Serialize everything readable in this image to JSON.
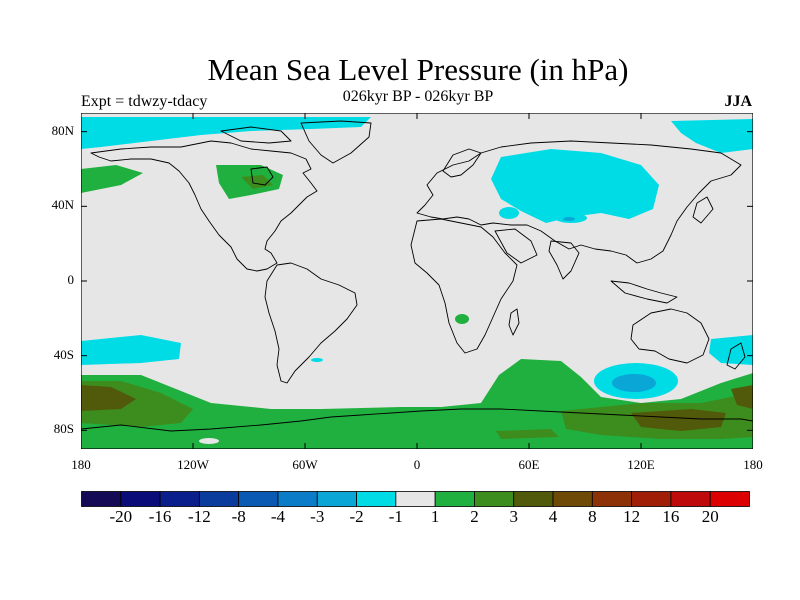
{
  "title": "Mean Sea Level Pressure (in hPa)",
  "subtitle": "026kyr BP - 026kyr BP",
  "experiment": "Expt = tdwzy-tdacy",
  "season": "JJA",
  "lat_ticks": [
    {
      "label": "80N",
      "lat": 80
    },
    {
      "label": "40N",
      "lat": 40
    },
    {
      "label": "0",
      "lat": 0
    },
    {
      "label": "40S",
      "lat": -40
    },
    {
      "label": "80S",
      "lat": -80
    }
  ],
  "lon_ticks": [
    {
      "label": "180",
      "lon": -180
    },
    {
      "label": "120W",
      "lon": -120
    },
    {
      "label": "60W",
      "lon": -60
    },
    {
      "label": "0",
      "lon": 0
    },
    {
      "label": "60E",
      "lon": 60
    },
    {
      "label": "120E",
      "lon": 120
    },
    {
      "label": "180",
      "lon": 180
    }
  ],
  "colorbar": {
    "colors": [
      "#140a55",
      "#0a0c7a",
      "#0a1e8c",
      "#0a3c9e",
      "#0a5ab4",
      "#0a7cc8",
      "#0aa6d6",
      "#00dce6",
      "#e6e6e6",
      "#20b040",
      "#3c8c1e",
      "#505a0a",
      "#6e4a06",
      "#8c3206",
      "#a01e06",
      "#be0a0a",
      "#dc0000"
    ],
    "labels": [
      "-20",
      "-16",
      "-12",
      "-8",
      "-4",
      "-3",
      "-2",
      "-1",
      "1",
      "2",
      "3",
      "4",
      "8",
      "12",
      "16",
      "20"
    ]
  },
  "colors": {
    "background": "#e6e6e6",
    "neg1": "#00dce6",
    "neg3": "#0aa6d6",
    "pos2": "#20b040",
    "pos3": "#3c8c1e",
    "pos4": "#505a0a"
  }
}
